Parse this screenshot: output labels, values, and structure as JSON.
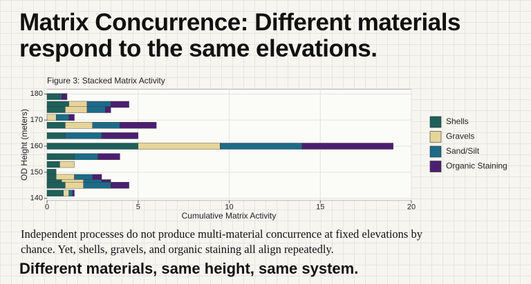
{
  "headline": "Matrix Concurrence: Different materials respond to the same elevations.",
  "body": "Independent processes do not produce multi-material concurrence at fixed elevations by chance. Yet, shells, gravels, and organic staining all align repeatedly.",
  "conclusion": "Different materials, same height, same system.",
  "chart_data": {
    "type": "bar",
    "orientation": "horizontal",
    "stacked": true,
    "title": "Figure 3: Stacked Matrix Activity",
    "x_label": "Cumulative Matrix Activity",
    "y_label": "OD Height (meters)",
    "y": [
      179,
      176,
      174,
      171,
      168,
      164,
      160,
      156,
      153,
      150,
      148,
      146,
      145,
      142
    ],
    "series": [
      {
        "name": "Shells",
        "color": "#1f5f5a",
        "values": [
          0.7,
          1.2,
          1.0,
          0,
          1.0,
          1.0,
          5.0,
          1.5,
          0.7,
          0.5,
          0.5,
          0.8,
          1.0,
          0.9
        ]
      },
      {
        "name": "Gravels",
        "color": "#e6d59a",
        "values": [
          0,
          1.0,
          1.2,
          0.5,
          1.5,
          0,
          4.5,
          0,
          0.8,
          0,
          1.0,
          1.2,
          1.0,
          0.3
        ]
      },
      {
        "name": "Sand/Silt",
        "color": "#1d6b88",
        "values": [
          0.1,
          1.3,
          1.0,
          0.7,
          1.5,
          2.0,
          4.5,
          1.3,
          0,
          0,
          1.0,
          1.0,
          1.5,
          0.2
        ]
      },
      {
        "name": "Organic Staining",
        "color": "#4b1f70",
        "values": [
          0.3,
          1.0,
          0.3,
          0.3,
          2.0,
          2.0,
          5.0,
          1.2,
          0,
          0,
          0.5,
          0.5,
          1.0,
          0.1
        ]
      }
    ],
    "xlim": [
      0,
      20
    ],
    "xticks": [
      0,
      5,
      10,
      15,
      20
    ],
    "ylim": [
      139.2,
      181.8
    ],
    "yticks": [
      140,
      150,
      160,
      170,
      180
    ],
    "grid": true,
    "legend": "right"
  }
}
